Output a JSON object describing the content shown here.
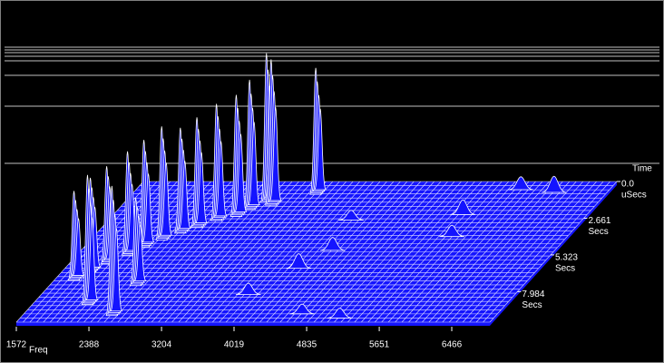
{
  "chart_data": {
    "type": "waterfall",
    "x_label": "Freq",
    "time_label": "Time",
    "xlim": [
      1572,
      6894
    ],
    "xticks": [
      1572,
      2388,
      3204,
      4019,
      4835,
      5651,
      6466
    ],
    "tlim": [
      0,
      10.2
    ],
    "time_ticks": [
      {
        "value": 0,
        "label": "0.0"
      },
      2.661,
      5.323,
      7.984
    ],
    "time_tick_units": [
      "uSecs",
      "Secs",
      "Secs",
      "Secs"
    ],
    "zlim": [
      0,
      100
    ],
    "color": "#1414ff",
    "peaks": [
      {
        "freq": 5900,
        "time": 0.6,
        "height": 8
      },
      {
        "freq": 6300,
        "time": 0.8,
        "height": 10
      },
      {
        "freq": 3650,
        "time": 1.0,
        "height": 78
      },
      {
        "freq": 3180,
        "time": 1.6,
        "height": 92
      },
      {
        "freq": 3260,
        "time": 1.8,
        "height": 90
      },
      {
        "freq": 3060,
        "time": 2.1,
        "height": 80
      },
      {
        "freq": 5500,
        "time": 2.4,
        "height": 9
      },
      {
        "freq": 2980,
        "time": 2.6,
        "height": 75
      },
      {
        "freq": 4300,
        "time": 2.8,
        "height": 6
      },
      {
        "freq": 2800,
        "time": 2.9,
        "height": 72
      },
      {
        "freq": 2650,
        "time": 3.4,
        "height": 68
      },
      {
        "freq": 2520,
        "time": 3.8,
        "height": 65
      },
      {
        "freq": 5600,
        "time": 4.0,
        "height": 7
      },
      {
        "freq": 2380,
        "time": 4.3,
        "height": 70
      },
      {
        "freq": 2250,
        "time": 4.8,
        "height": 66
      },
      {
        "freq": 4400,
        "time": 5.0,
        "height": 8
      },
      {
        "freq": 2150,
        "time": 5.4,
        "height": 64
      },
      {
        "freq": 2000,
        "time": 6.0,
        "height": 60
      },
      {
        "freq": 4200,
        "time": 6.3,
        "height": 9
      },
      {
        "freq": 1900,
        "time": 6.6,
        "height": 58
      },
      {
        "freq": 1800,
        "time": 7.2,
        "height": 55
      },
      {
        "freq": 2550,
        "time": 7.6,
        "height": 54
      },
      {
        "freq": 3900,
        "time": 8.2,
        "height": 7
      },
      {
        "freq": 2204,
        "time": 9.0,
        "height": 80
      },
      {
        "freq": 4700,
        "time": 9.6,
        "height": 6
      },
      {
        "freq": 2590,
        "time": 9.8,
        "height": 80
      },
      {
        "freq": 5166,
        "time": 9.9,
        "height": 6
      }
    ]
  }
}
